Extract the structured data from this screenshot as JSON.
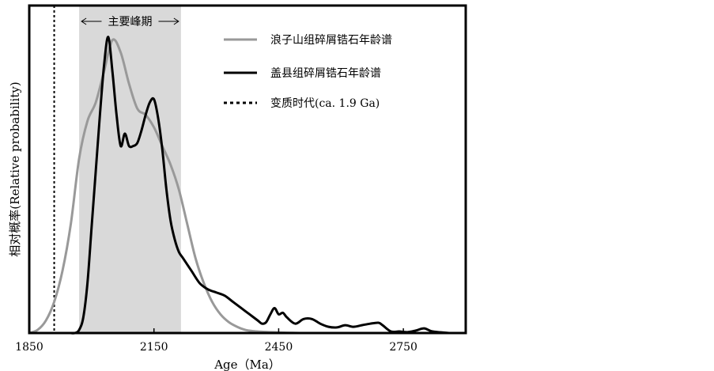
{
  "chart_data": {
    "type": "line",
    "title": "",
    "xlabel": "Age（Ma）",
    "ylabel": "相对概率(Relative probability)",
    "xlim": [
      1850,
      2900
    ],
    "ylim": [
      0,
      1.0
    ],
    "x_ticks": [
      1850,
      2150,
      2450,
      2750
    ],
    "x_tick_labels": [
      "1850",
      "2150",
      "2450",
      "2750"
    ],
    "y_ticks_shown": false,
    "grid": false,
    "legend_position": "top-right",
    "highlight_band": {
      "x_start": 1970,
      "x_end": 2215,
      "label": "主要峰期",
      "color": "#d9d9d9"
    },
    "reference_line": {
      "name": "变质时代(ca. 1.9 Ga)",
      "x": 1910,
      "style": "dashed"
    },
    "series": [
      {
        "name": "浪子山组碎屑锆石年龄谱",
        "color": "#999999",
        "x": [
          1850,
          1870,
          1890,
          1910,
          1930,
          1950,
          1970,
          1990,
          2010,
          2030,
          2050,
          2070,
          2090,
          2110,
          2130,
          2150,
          2170,
          2190,
          2210,
          2230,
          2250,
          2270,
          2290,
          2310,
          2330,
          2350,
          2370,
          2390,
          2410,
          2430,
          2450,
          2470,
          2500
        ],
        "y": [
          0.0,
          0.01,
          0.04,
          0.1,
          0.2,
          0.35,
          0.56,
          0.68,
          0.74,
          0.84,
          0.94,
          0.9,
          0.8,
          0.72,
          0.7,
          0.66,
          0.6,
          0.54,
          0.46,
          0.35,
          0.24,
          0.16,
          0.1,
          0.06,
          0.035,
          0.02,
          0.01,
          0.006,
          0.004,
          0.003,
          0.002,
          0.001,
          0.0
        ]
      },
      {
        "name": "盖县组碎屑锆石年龄谱",
        "color": "#000000",
        "x": [
          1950,
          1960,
          1970,
          1980,
          1990,
          2000,
          2010,
          2020,
          2030,
          2040,
          2050,
          2060,
          2070,
          2080,
          2090,
          2100,
          2110,
          2120,
          2130,
          2140,
          2150,
          2160,
          2170,
          2180,
          2190,
          2200,
          2210,
          2220,
          2240,
          2260,
          2280,
          2300,
          2320,
          2340,
          2360,
          2380,
          2400,
          2410,
          2420,
          2430,
          2440,
          2450,
          2460,
          2470,
          2490,
          2510,
          2530,
          2550,
          2570,
          2590,
          2610,
          2630,
          2650,
          2670,
          2690,
          2700,
          2720,
          2740,
          2760,
          2780,
          2800,
          2820,
          2860
        ],
        "y": [
          0.0,
          0.0,
          0.01,
          0.05,
          0.16,
          0.34,
          0.52,
          0.7,
          0.86,
          0.95,
          0.84,
          0.7,
          0.6,
          0.64,
          0.6,
          0.6,
          0.61,
          0.65,
          0.7,
          0.74,
          0.75,
          0.69,
          0.59,
          0.46,
          0.36,
          0.3,
          0.26,
          0.24,
          0.2,
          0.16,
          0.14,
          0.13,
          0.12,
          0.1,
          0.08,
          0.06,
          0.04,
          0.03,
          0.035,
          0.06,
          0.08,
          0.06,
          0.065,
          0.05,
          0.03,
          0.045,
          0.045,
          0.03,
          0.02,
          0.018,
          0.025,
          0.02,
          0.025,
          0.03,
          0.033,
          0.025,
          0.005,
          0.005,
          0.003,
          0.008,
          0.015,
          0.005,
          0.0
        ]
      }
    ]
  }
}
